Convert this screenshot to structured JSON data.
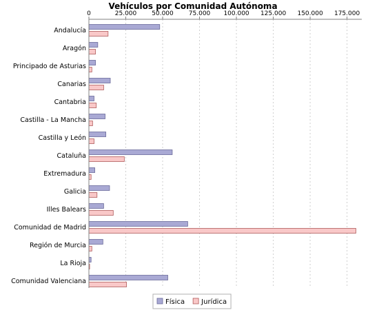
{
  "chart_data": {
    "type": "bar",
    "orientation": "horizontal",
    "title": "Vehículos por Comunidad Autónoma",
    "xlabel": "",
    "ylabel": "",
    "xlim": [
      0,
      185000
    ],
    "x_ticks": [
      0,
      25000,
      50000,
      75000,
      100000,
      125000,
      150000,
      175000
    ],
    "x_tick_labels": [
      "0",
      "25.000",
      "50.000",
      "75.000",
      "100.000",
      "125.000",
      "150.000",
      "175.000"
    ],
    "x_axis_position": "top",
    "grid": "vertical dashed",
    "legend_position": "bottom-center",
    "categories": [
      "Andalucía",
      "Aragón",
      "Principado de Asturias",
      "Canarias",
      "Cantabria",
      "Castilla - La Mancha",
      "Castilla y León",
      "Cataluña",
      "Extremadura",
      "Galicia",
      "Illes Balears",
      "Comunidad de Madrid",
      "Región de Murcia",
      "La Rioja",
      "Comunidad Valenciana"
    ],
    "series": [
      {
        "name": "Física",
        "color": "#a9a9d4",
        "values": [
          48000,
          6000,
          4500,
          14500,
          3500,
          11000,
          11500,
          56500,
          4000,
          14000,
          10000,
          67000,
          9500,
          1500,
          53500
        ]
      },
      {
        "name": "Jurídica",
        "color": "#f9c8c8",
        "values": [
          13000,
          4500,
          2000,
          10000,
          5000,
          2500,
          3500,
          24000,
          1500,
          5500,
          16500,
          181000,
          2000,
          500,
          25500
        ]
      }
    ]
  }
}
